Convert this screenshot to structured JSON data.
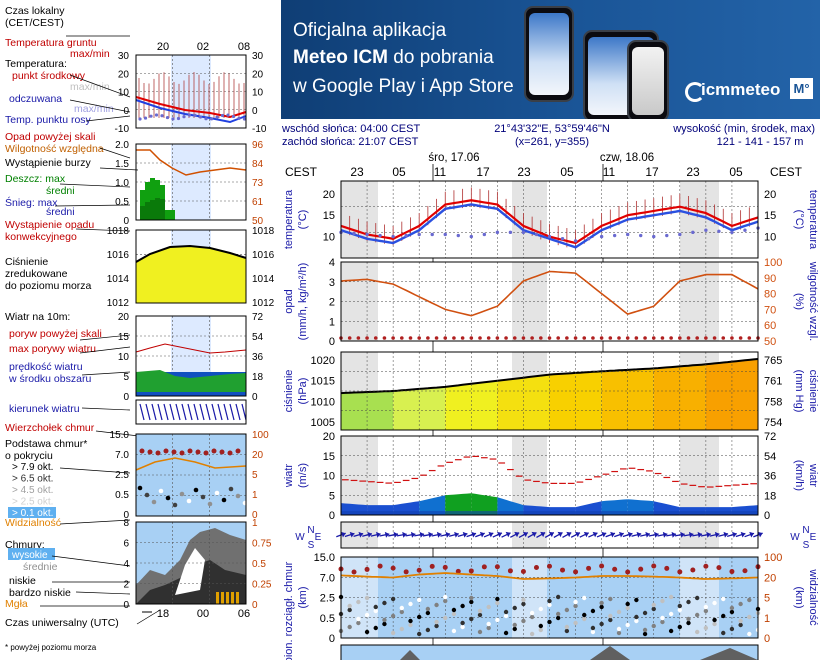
{
  "banner": {
    "line1": "Oficjalna aplikacja",
    "line2_bold": "Meteo ICM",
    "line2_rest": " do pobrania",
    "line3": "w Google Play i App Store",
    "logo": "icmmeteo",
    "logo_box": "M°"
  },
  "info": {
    "sunrise": "wschód słońca: 04:00 CEST",
    "sunset": "zachód słońca: 21:07 CEST",
    "coords": "21°43'32\"E, 53°59'46\"N",
    "grid": "(x=261, y=355)",
    "elev_label": "wysokość (min, środek, max)",
    "elev_values": "121 - 141 - 157 m"
  },
  "legend": {
    "time_local": [
      "Czas lokalny",
      "(CET/CEST)"
    ],
    "ground_temp": [
      "Temperatura gruntu",
      "max/min"
    ],
    "temp_label": "Temperatura:",
    "midpoint": "punkt środkowy",
    "temp_max_min": "max/min",
    "feels": "odczuwana",
    "feels_max_min": "max/min",
    "dew": "Temp. punktu rosy",
    "precip_above": "Opad powyżej skali",
    "humidity": "Wilgotność względna",
    "storm": "Wystąpienie burzy",
    "rain_max": "Deszcz: max",
    "rain_mean": "średni",
    "snow_max": "Śnieg: max",
    "snow_mean": "średni",
    "convective": [
      "Wystąpienie opadu",
      "konwekcyjnego"
    ],
    "pressure": [
      "Ciśnienie",
      "zredukowane",
      "do poziomu morza"
    ],
    "wind_title": "Wiatr na 10m:",
    "gust_above": "poryw powyżej skali",
    "gust_max": "max porywy wiatru",
    "wind_mean": [
      "prędkość wiatru",
      "w środku obszaru"
    ],
    "wind_dir": "kierunek wiatru",
    "cloud_top": "Wierzchołek chmur",
    "cloud_base": [
      "Podstawa chmur*",
      "o pokryciu"
    ],
    "okt": [
      "> 7.9 okt.",
      "> 6.5 okt.",
      "> 4.5 okt.",
      "> 2.5 okt.",
      "> 0.1 okt."
    ],
    "visibility": "Widzialność",
    "clouds": "Chmury:",
    "cl_high": "wysokie",
    "cl_mid": "średnie",
    "cl_low": "niskie",
    "cl_vlow": "bardzo niskie",
    "fog": "Mgła",
    "utc": "Czas uniwersalny (UTC)",
    "footnote": "* powyżej poziomu morza"
  },
  "mini": {
    "top_ticks": [
      "20",
      "02",
      "08"
    ],
    "bottom_ticks": [
      "18",
      "00",
      "06"
    ],
    "temp_y": [
      "30",
      "20",
      "10",
      "0",
      "-10"
    ],
    "precip_y": [
      "2.0",
      "1.5",
      "1.0",
      "0.5",
      "0"
    ],
    "hum_y": [
      "96",
      "84",
      "73",
      "61",
      "50"
    ],
    "press_y": [
      "1018",
      "1016",
      "1014",
      "1012"
    ],
    "wind_y": [
      "20",
      "15",
      "10",
      "5",
      "0"
    ],
    "wind_kmh": [
      "72",
      "54",
      "36",
      "18",
      "0"
    ],
    "cloud_y": [
      "15.0",
      "7.0",
      "2.5",
      "0.5",
      "0"
    ],
    "vis_y": [
      "100",
      "20",
      "5",
      "1",
      "0"
    ],
    "cov_y": [
      "8",
      "6",
      "4",
      "2",
      "0"
    ],
    "cov_r": [
      "1",
      "0.75",
      "0.5",
      "0.25",
      "0"
    ]
  },
  "main": {
    "tz": "CEST",
    "day1": "śro, 17.06",
    "day2": "czw, 18.06",
    "hour_ticks": [
      "23",
      "05",
      "11",
      "17",
      "23",
      "05",
      "11",
      "17",
      "23",
      "05"
    ],
    "temp_axis": "temperatura",
    "temp_unit": "(°C)",
    "precip_axis": "opad",
    "precip_unit": "(mm/h, kg/m²/h)",
    "hum_axis": "wilgotność wzgl.",
    "hum_unit": "(%)",
    "press_axis": "ciśnienie",
    "press_unit": "(hPa)",
    "press_unit_r": "(mm Hg)",
    "wind_axis": "wiatr",
    "wind_unit": "(m/s)",
    "wind_unit_r": "(km/h)",
    "cloud_axis": "pion. rozciągł. chmur",
    "cloud_unit": "(km)",
    "vis_axis": "widzialność",
    "vis_unit": "(km)",
    "temp_y": [
      "20",
      "15",
      "10"
    ],
    "precip_y": [
      "4",
      "3",
      "2",
      "1",
      "0"
    ],
    "hum_y": [
      "100",
      "90",
      "80",
      "70",
      "60",
      "50"
    ],
    "press_y": [
      "1020",
      "1015",
      "1010",
      "1005"
    ],
    "press_r": [
      "765",
      "761",
      "758",
      "754"
    ],
    "wind_y": [
      "20",
      "15",
      "10",
      "5",
      "0"
    ],
    "wind_r": [
      "72",
      "54",
      "36",
      "18",
      "0"
    ],
    "cloud_y": [
      "15.0",
      "7.0",
      "2.5",
      "0.5",
      "0"
    ],
    "vis_r": [
      "100",
      "20",
      "5",
      "1",
      "0"
    ],
    "wdir_left": "W",
    "wdir_n": "N",
    "wdir_s": "S",
    "wdir_e": "E"
  },
  "chart_data": [
    {
      "type": "line",
      "x_hours": [
        0,
        3,
        6,
        9,
        12,
        15,
        18,
        21,
        24,
        27,
        30,
        33,
        36,
        39,
        42,
        45,
        48
      ],
      "series": [
        {
          "values": [
            12.5,
            10.5,
            9.5,
            12.5,
            17.5,
            18.5,
            17.5,
            12.5,
            10.0,
            8.5,
            12.5,
            15.0,
            16.0,
            17.0,
            15.5,
            12.5,
            14.5
          ]
        },
        {
          "values": [
            11.5,
            9.5,
            8.5,
            11.5,
            16.5,
            17.5,
            16.5,
            11.5,
            9.5,
            7.5,
            11.5,
            14.0,
            15.0,
            16.0,
            14.5,
            11.5,
            13.5
          ]
        },
        {
          "values": [
            11.0,
            10.5,
            10.0,
            10.5,
            10.5,
            10.0,
            11.0,
            11.0,
            10.0,
            9.0,
            10.0,
            10.5,
            10.0,
            10.5,
            11.5,
            11.0,
            12.0
          ]
        }
      ],
      "ylim": [
        5,
        23
      ]
    },
    {
      "type": "line",
      "x_hours": [
        0,
        3,
        6,
        9,
        12,
        15,
        18,
        21,
        24,
        27,
        30,
        33,
        36,
        39,
        42,
        45,
        48
      ],
      "series": [
        {
          "values": [
            0,
            0,
            0,
            0,
            0,
            0,
            0,
            0,
            0,
            0,
            0,
            0,
            0,
            0,
            0,
            0,
            0
          ]
        },
        {
          "values": [
            88,
            89,
            86,
            78,
            70,
            66,
            72,
            88,
            94,
            93,
            80,
            67,
            72,
            88,
            92,
            92,
            83
          ]
        }
      ],
      "ylim": [
        0,
        4
      ],
      "y2lim": [
        50,
        100
      ]
    },
    {
      "type": "area",
      "x_hours": [
        0,
        6,
        12,
        18,
        24,
        30,
        36,
        42,
        48
      ],
      "values": [
        1012.0,
        1012.5,
        1013.5,
        1015.0,
        1016.5,
        1017.3,
        1018.0,
        1019.0,
        1020.3
      ],
      "ylim": [
        1003,
        1022
      ]
    },
    {
      "type": "line",
      "x_hours": [
        0,
        3,
        6,
        9,
        12,
        15,
        18,
        21,
        24,
        27,
        30,
        33,
        36,
        39,
        42,
        45,
        48
      ],
      "series": [
        {
          "values": [
            3.0,
            2.5,
            2.5,
            3.5,
            5.0,
            5.5,
            4.5,
            2.5,
            2.0,
            2.0,
            3.5,
            4.0,
            3.5,
            2.0,
            2.0,
            2.0,
            2.5
          ]
        },
        {
          "values": [
            9.0,
            8.5,
            8.0,
            9.5,
            13.0,
            15.0,
            14.0,
            9.0,
            8.0,
            8.0,
            10.0,
            12.0,
            11.0,
            8.0,
            7.0,
            7.5,
            8.0
          ]
        }
      ],
      "ylim": [
        0,
        20
      ]
    },
    {
      "type": "line",
      "x_hours": [
        0,
        3,
        6,
        9,
        12,
        15,
        18,
        21,
        24,
        27,
        30,
        33,
        36,
        39,
        42,
        45,
        48
      ],
      "series": [
        {
          "values": [
            7.2,
            6.8,
            6.5,
            7.5,
            8.0,
            7.5,
            7.0,
            6.0,
            6.2,
            6.5,
            7.0,
            7.0,
            6.8,
            6.5,
            6.0,
            6.2,
            6.5
          ]
        },
        {
          "values": [
            30,
            30,
            30,
            30,
            30,
            30,
            30,
            30,
            30,
            30,
            30,
            30,
            30,
            30,
            30,
            30,
            30
          ]
        }
      ],
      "ylim": [
        0,
        15
      ]
    },
    {
      "type": "line",
      "x_hours": [
        0,
        3,
        6,
        9,
        12,
        15,
        18,
        21,
        24
      ],
      "values": [
        26,
        25,
        24,
        24,
        26,
        27,
        26,
        25,
        26
      ],
      "ylim": [
        0,
        100
      ]
    }
  ]
}
